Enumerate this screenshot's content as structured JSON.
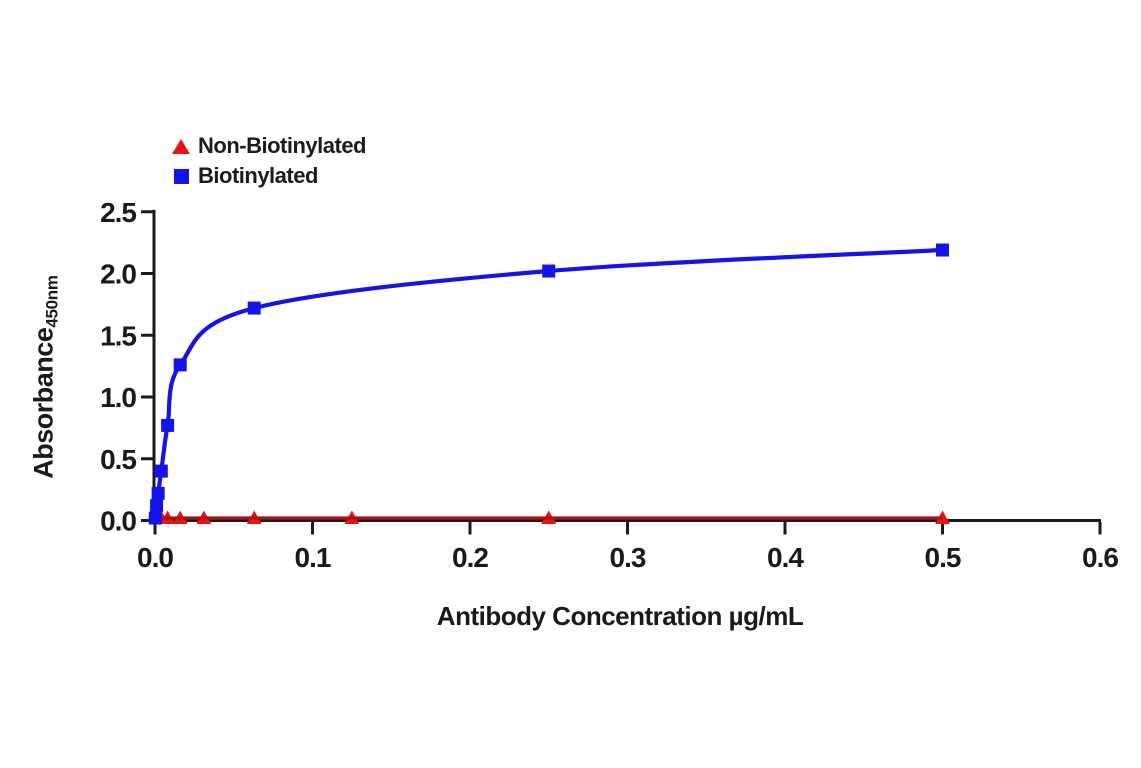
{
  "page": {
    "background": "#ffffff",
    "text_color": "#1a1a1a"
  },
  "chart_data": {
    "type": "line",
    "title": "",
    "xlabel": "Antibody Concentration µg/mL",
    "ylabel": "Absorbance",
    "ylabel_subscript": "450nm",
    "xlim": [
      0,
      0.6
    ],
    "ylim": [
      0,
      2.5
    ],
    "grid": false,
    "legend_position": "top-left",
    "axis_color": "#1a1a1a",
    "x_ticks": {
      "values": [
        0,
        0.1,
        0.2,
        0.3,
        0.4,
        0.5,
        0.6
      ],
      "labels": [
        "0.0",
        "0.1",
        "0.2",
        "0.3",
        "0.4",
        "0.5",
        "0.6"
      ]
    },
    "y_ticks": {
      "values": [
        0,
        0.5,
        1.0,
        1.5,
        2.0,
        2.5
      ],
      "labels": [
        "0.0",
        "0.5",
        "1.0",
        "1.5",
        "2.0",
        "2.5"
      ]
    },
    "series": [
      {
        "name": "Non-Biotinylated",
        "marker": "triangle",
        "marker_color": "#e81414",
        "line_color": "#a81414",
        "x": [
          0.002,
          0.004,
          0.008,
          0.016,
          0.031,
          0.063,
          0.125,
          0.25,
          0.5
        ],
        "y": [
          0.02,
          0.02,
          0.02,
          0.02,
          0.02,
          0.02,
          0.02,
          0.02,
          0.02
        ]
      },
      {
        "name": "Biotinylated",
        "marker": "square",
        "marker_color": "#1414e8",
        "line_color": "#1414e8",
        "x": [
          0.0002,
          0.001,
          0.002,
          0.004,
          0.008,
          0.016,
          0.063,
          0.25,
          0.5
        ],
        "y": [
          0.02,
          0.12,
          0.22,
          0.4,
          0.77,
          1.26,
          1.72,
          2.02,
          2.19
        ]
      }
    ]
  }
}
